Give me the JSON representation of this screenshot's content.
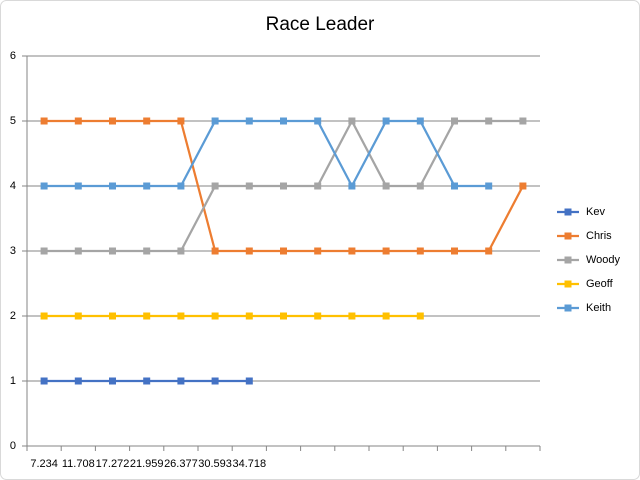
{
  "chart_data": {
    "type": "line",
    "title": "Race Leader",
    "categories": [
      "7.234",
      "11.708",
      "17.272",
      "21.959",
      "26.377",
      "30.593",
      "34.718",
      null,
      null,
      null,
      null,
      null,
      null,
      null,
      null
    ],
    "ylim": [
      0,
      6
    ],
    "yticks": [
      0,
      1,
      2,
      3,
      4,
      5,
      6
    ],
    "grid": true,
    "legend": "right",
    "series": [
      {
        "name": "Kev",
        "color": "#4472c4",
        "values": [
          1,
          1,
          1,
          1,
          1,
          1,
          1,
          null,
          null,
          null,
          null,
          null,
          null,
          null,
          null
        ]
      },
      {
        "name": "Chris",
        "color": "#ed7d31",
        "values": [
          5,
          5,
          5,
          5,
          5,
          3,
          3,
          3,
          3,
          3,
          3,
          3,
          3,
          3,
          4
        ]
      },
      {
        "name": "Woody",
        "color": "#a5a5a5",
        "values": [
          3,
          3,
          3,
          3,
          3,
          4,
          4,
          4,
          4,
          5,
          4,
          4,
          5,
          5,
          5
        ]
      },
      {
        "name": "Geoff",
        "color": "#ffc000",
        "values": [
          2,
          2,
          2,
          2,
          2,
          2,
          2,
          2,
          2,
          2,
          2,
          2,
          null,
          null,
          null
        ]
      },
      {
        "name": "Keith",
        "color": "#5b9bd5",
        "values": [
          4,
          4,
          4,
          4,
          4,
          5,
          5,
          5,
          5,
          4,
          5,
          5,
          4,
          4,
          null
        ]
      }
    ]
  }
}
